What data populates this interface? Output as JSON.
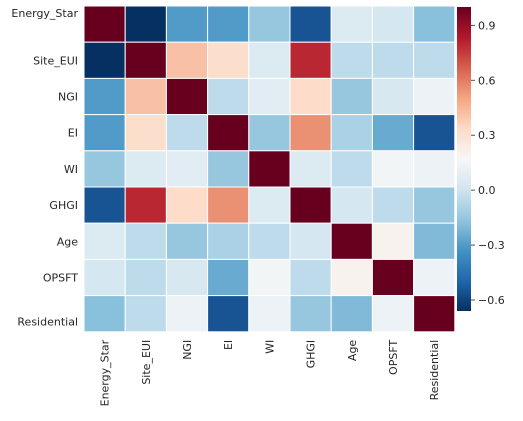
{
  "chart_data": {
    "type": "heatmap",
    "title": "",
    "xlabel": "",
    "ylabel": "",
    "x_categories": [
      "Energy_Star",
      "Site_EUI",
      "NGI",
      "EI",
      "WI",
      "GHGI",
      "Age",
      "OPSFT",
      "Residential"
    ],
    "y_categories": [
      "Energy_Star",
      "Site_EUI",
      "NGI",
      "EI",
      "WI",
      "GHGI",
      "Age",
      "OPSFT",
      "Residential"
    ],
    "values": [
      [
        1.0,
        -0.66,
        -0.3,
        -0.3,
        -0.15,
        -0.55,
        0.05,
        0.02,
        -0.18
      ],
      [
        -0.66,
        1.0,
        0.42,
        0.32,
        0.05,
        0.8,
        -0.05,
        -0.05,
        -0.05
      ],
      [
        -0.3,
        0.42,
        1.0,
        -0.05,
        0.08,
        0.33,
        -0.15,
        0.03,
        0.12
      ],
      [
        -0.3,
        0.32,
        -0.05,
        1.0,
        -0.15,
        0.55,
        -0.1,
        -0.25,
        -0.55
      ],
      [
        -0.15,
        0.05,
        0.08,
        -0.15,
        1.0,
        0.05,
        -0.05,
        0.15,
        0.12
      ],
      [
        -0.55,
        0.8,
        0.33,
        0.55,
        0.05,
        1.0,
        0.02,
        -0.05,
        -0.15
      ],
      [
        0.05,
        -0.05,
        -0.15,
        -0.1,
        -0.05,
        0.02,
        1.0,
        0.2,
        -0.2
      ],
      [
        0.02,
        -0.05,
        0.03,
        -0.25,
        0.15,
        -0.05,
        0.2,
        1.0,
        0.12
      ],
      [
        -0.18,
        -0.05,
        0.12,
        -0.55,
        0.12,
        -0.15,
        -0.2,
        0.12,
        1.0
      ]
    ],
    "colormap": "RdBu_r",
    "vmin": -0.66,
    "vmax": 1.0,
    "grid": false,
    "cell_border_color": "#ffffff",
    "colorbar": {
      "placement": "right",
      "ticks": [
        -0.6,
        -0.3,
        0.0,
        0.3,
        0.6,
        0.9
      ],
      "tick_labels": [
        "−0.6",
        "−0.3",
        "0.0",
        "0.3",
        "0.6",
        "0.9"
      ]
    }
  }
}
